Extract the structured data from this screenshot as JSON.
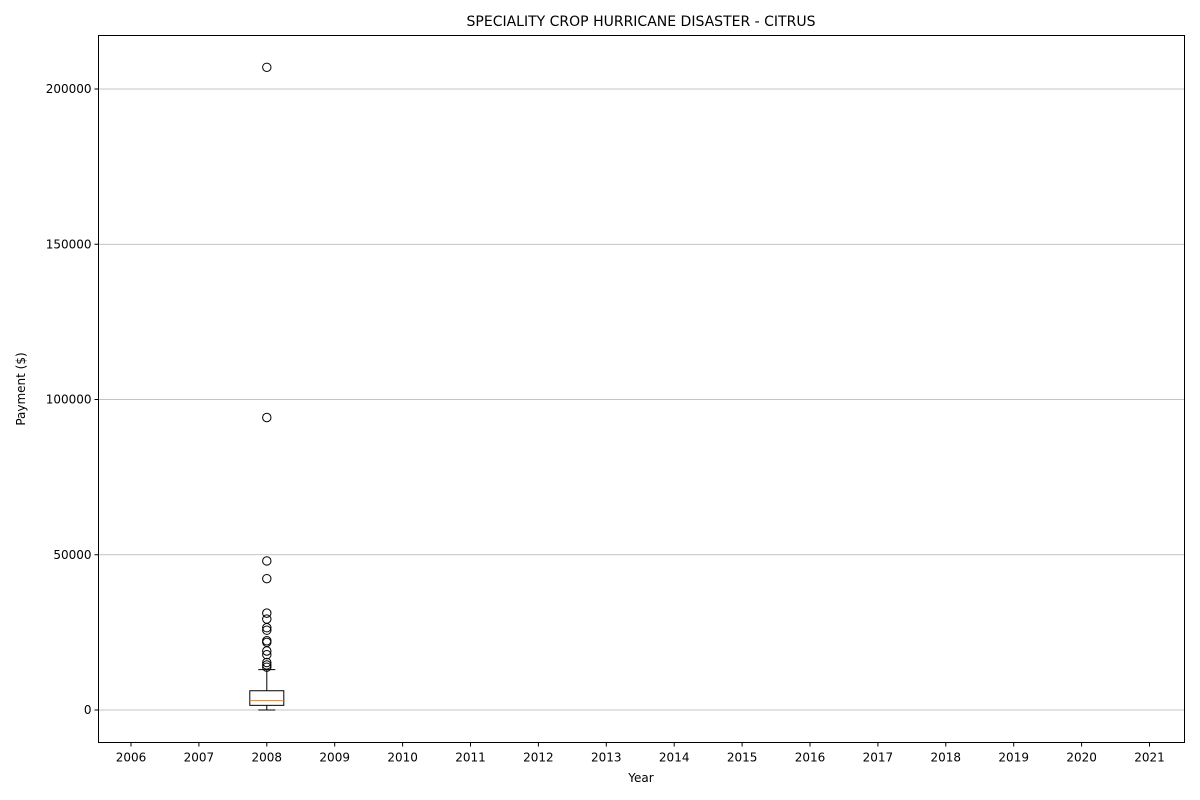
{
  "chart_data": {
    "type": "box",
    "title": "SPECIALITY CROP HURRICANE DISASTER - CITRUS",
    "xlabel": "Year",
    "ylabel": "Payment ($)",
    "categories": [
      "2006",
      "2007",
      "2008",
      "2009",
      "2010",
      "2011",
      "2012",
      "2013",
      "2014",
      "2015",
      "2016",
      "2017",
      "2018",
      "2019",
      "2020",
      "2021"
    ],
    "ylim": [
      -10500,
      217500
    ],
    "yticks": [
      0,
      50000,
      100000,
      150000,
      200000
    ],
    "ytick_labels": [
      "0",
      "50000",
      "100000",
      "150000",
      "200000"
    ],
    "grid": "horizontal",
    "boxes": [
      {
        "category": "2008",
        "whisker_low": 0,
        "q1": 1500,
        "median": 3000,
        "q3": 6200,
        "whisker_high": 13000,
        "outliers": [
          13800,
          14500,
          15300,
          17800,
          19000,
          21800,
          22300,
          25700,
          26500,
          29300,
          31200,
          42300,
          48000,
          94200,
          207000
        ]
      }
    ],
    "colors": {
      "box": "#000000",
      "median": "#ff7f0e",
      "grid": "#b0b0b0"
    }
  }
}
